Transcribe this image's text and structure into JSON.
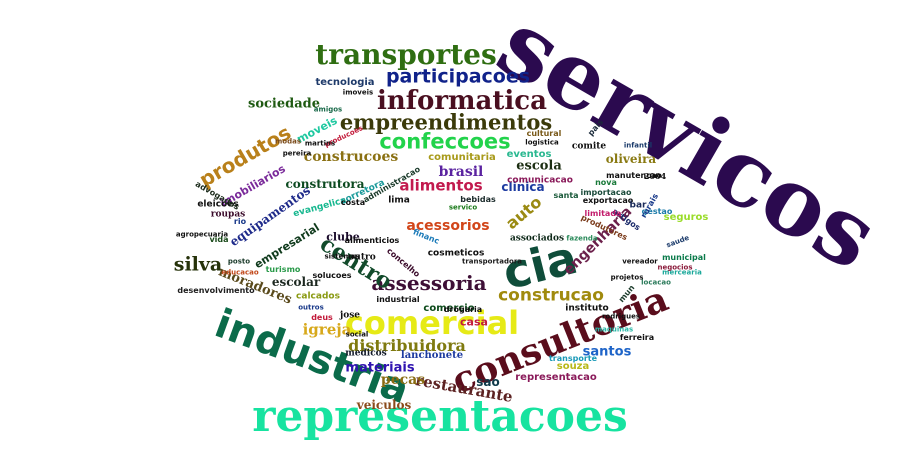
{
  "words": [
    {
      "text": "servicos",
      "color": "#2b0a4f",
      "font": "serif",
      "rot": 30
    },
    {
      "text": "representacoes",
      "color": "#17e3a0",
      "font": "serif"
    },
    {
      "text": "comercial",
      "color": "#e6ea16",
      "font": "sans"
    },
    {
      "text": "consultoria",
      "color": "#5a0d1c",
      "font": "serif",
      "rot": -22
    },
    {
      "text": "industria",
      "color": "#0b6b4a",
      "font": "sans",
      "rot": 20
    },
    {
      "text": "cia",
      "color": "#0f4d3a",
      "font": "sans",
      "rot": -14
    },
    {
      "text": "transportes",
      "color": "#2f6e12",
      "font": "serif"
    },
    {
      "text": "informatica",
      "color": "#4a0f20",
      "font": "serif"
    },
    {
      "text": "empreendimentos",
      "color": "#3b3a0a",
      "font": "serif"
    },
    {
      "text": "participacoes",
      "color": "#10228a",
      "font": "sans"
    },
    {
      "text": "confeccoes",
      "color": "#22d34b",
      "font": "sans"
    },
    {
      "text": "assessoria",
      "color": "#3e0f36",
      "font": "serif"
    },
    {
      "text": "produtos",
      "color": "#b9801a",
      "font": "sans",
      "rot": -30
    },
    {
      "text": "centro",
      "color": "#114a2a",
      "font": "serif",
      "rot": 32
    },
    {
      "text": "construcao",
      "color": "#a08a0d",
      "font": "sans"
    },
    {
      "text": "distribuidora",
      "color": "#7f7a0f",
      "font": "serif"
    },
    {
      "text": "alimentos",
      "color": "#c21a4e",
      "font": "sans"
    },
    {
      "text": "construcoes",
      "color": "#8a7012",
      "font": "serif"
    },
    {
      "text": "restaurante",
      "color": "#5c2222",
      "font": "serif",
      "rot": 10
    },
    {
      "text": "engenharia",
      "color": "#6b1f4a",
      "font": "sans",
      "rot": -45
    },
    {
      "text": "silva",
      "color": "#26320a",
      "font": "serif"
    },
    {
      "text": "auto",
      "color": "#9a8a12",
      "font": "sans",
      "rot": -40
    },
    {
      "text": "materiais",
      "color": "#2f13b0",
      "font": "sans"
    },
    {
      "text": "igreja",
      "color": "#d7a81a",
      "font": "serif"
    },
    {
      "text": "brasil",
      "color": "#5a22a0",
      "font": "serif"
    },
    {
      "text": "escola",
      "color": "#1c2e12",
      "font": "serif"
    },
    {
      "text": "santos",
      "color": "#1e64c8",
      "font": "sans"
    },
    {
      "text": "acessorios",
      "color": "#d2461a",
      "font": "sans"
    },
    {
      "text": "pecas",
      "color": "#8a6c12",
      "font": "serif"
    },
    {
      "text": "sociedade",
      "color": "#1f5a12",
      "font": "serif"
    },
    {
      "text": "moradores",
      "color": "#5a4a1c",
      "font": "serif",
      "rot": 22
    },
    {
      "text": "construtora",
      "color": "#0c4a20",
      "font": "serif"
    },
    {
      "text": "oliveira",
      "color": "#8a7a12",
      "font": "serif"
    },
    {
      "text": "clinica",
      "color": "#1c3aa0",
      "font": "sans"
    },
    {
      "text": "tecnologia",
      "color": "#1e3a6a",
      "font": "sans"
    },
    {
      "text": "equipamentos",
      "color": "#1e2a8a",
      "font": "serif",
      "rot": -35
    },
    {
      "text": "escolar",
      "color": "#1c2820",
      "font": "serif"
    },
    {
      "text": "imobiliarios",
      "color": "#7a2a9a",
      "font": "sans",
      "rot": -30
    },
    {
      "text": "moveis",
      "color": "#1ec8a0",
      "font": "sans",
      "rot": -28
    },
    {
      "text": "empresarial",
      "color": "#0f3a1c",
      "font": "sans",
      "rot": -32
    },
    {
      "text": "clube",
      "color": "#1a0a2a",
      "font": "serif"
    },
    {
      "text": "sao",
      "color": "#0f3a4a",
      "font": "sans"
    },
    {
      "text": "veiculos",
      "color": "#8a4a1a",
      "font": "serif"
    },
    {
      "text": "comunitaria",
      "color": "#a89a1a",
      "font": "sans"
    },
    {
      "text": "eventos",
      "color": "#2ab890",
      "font": "sans"
    },
    {
      "text": "lanchonete",
      "color": "#1c3aa0",
      "font": "serif"
    },
    {
      "text": "representacao",
      "color": "#8a1a5a",
      "font": "sans"
    },
    {
      "text": "casa",
      "color": "#c21a3a",
      "font": "sans"
    },
    {
      "text": "seguros",
      "color": "#9adc2a",
      "font": "sans"
    },
    {
      "text": "souza",
      "color": "#b8b818",
      "font": "sans"
    },
    {
      "text": "instituto",
      "color": "#101010",
      "font": "sans"
    },
    {
      "text": "associados",
      "color": "#0f2a1a",
      "font": "serif"
    },
    {
      "text": "comercio",
      "color": "#0c4a1a",
      "font": "sans"
    },
    {
      "text": "medicos",
      "color": "#101828",
      "font": "serif"
    },
    {
      "text": "calcados",
      "color": "#8a9a12",
      "font": "sans"
    },
    {
      "text": "desenvolvimento",
      "color": "#1e1e1e",
      "font": "sans"
    },
    {
      "text": "turismo",
      "color": "#2a9a4a",
      "font": "sans"
    },
    {
      "text": "evangelica",
      "color": "#18b890",
      "font": "sans",
      "rot": -15
    },
    {
      "text": "corretora",
      "color": "#1a9a9a",
      "font": "sans",
      "rot": -25
    },
    {
      "text": "comite",
      "color": "#101010",
      "font": "serif"
    },
    {
      "text": "manutencao",
      "color": "#101010",
      "font": "sans"
    },
    {
      "text": "nova",
      "color": "#1a7a3a",
      "font": "sans"
    },
    {
      "text": "importacao",
      "color": "#1a4a3a",
      "font": "sans"
    },
    {
      "text": "exportacao",
      "color": "#101010",
      "font": "sans"
    },
    {
      "text": "lima",
      "color": "#101010",
      "font": "sans"
    },
    {
      "text": "comunicacao",
      "color": "#8a1a5a",
      "font": "sans"
    },
    {
      "text": "eleicoes",
      "color": "#101010",
      "font": "sans"
    },
    {
      "text": "roupas",
      "color": "#3a0a2a",
      "font": "serif"
    },
    {
      "text": "rio",
      "color": "#1a3a8a",
      "font": "sans"
    },
    {
      "text": "outro",
      "color": "#101010",
      "font": "serif"
    },
    {
      "text": "bar",
      "color": "#1a2a5a",
      "font": "sans"
    },
    {
      "text": "mun",
      "color": "#1a3a2a",
      "font": "sans",
      "rot": -50
    },
    {
      "text": "municipal",
      "color": "#0a7a4a",
      "font": "sans"
    },
    {
      "text": "solucoes",
      "color": "#101010",
      "font": "sans"
    },
    {
      "text": "deus",
      "color": "#c21a3a",
      "font": "sans"
    },
    {
      "text": "jose",
      "color": "#101010",
      "font": "serif"
    },
    {
      "text": "financ",
      "color": "#1a7ab8",
      "font": "sans",
      "rot": 22
    },
    {
      "text": "2004",
      "color": "#101010",
      "font": "serif"
    },
    {
      "text": "santa",
      "color": "#1a5a3a",
      "font": "sans"
    },
    {
      "text": "concelho",
      "color": "#3a0a2a",
      "font": "sans",
      "rot": 40
    },
    {
      "text": "artigos",
      "color": "#1a2a6a",
      "font": "sans",
      "rot": 35
    },
    {
      "text": "limitada",
      "color": "#c21a6a",
      "font": "sans"
    },
    {
      "text": "gestao",
      "color": "#1a7aa8",
      "font": "sans"
    },
    {
      "text": "rurais",
      "color": "#1a3a8a",
      "font": "sans",
      "rot": -60
    },
    {
      "text": "pais",
      "color": "#1a2a3a",
      "font": "sans",
      "rot": -50
    },
    {
      "text": "produtores",
      "color": "#7a3a1a",
      "font": "sans",
      "rot": 25
    },
    {
      "text": "ferreira",
      "color": "#101010",
      "font": "sans"
    },
    {
      "text": "transporte",
      "color": "#1a9ab8",
      "font": "sans"
    },
    {
      "text": "rodrigues",
      "color": "#101010",
      "font": "sans"
    },
    {
      "text": "maquinas",
      "color": "#2ab8a8",
      "font": "sans"
    },
    {
      "text": "locacao",
      "color": "#2a7a5a",
      "font": "sans"
    },
    {
      "text": "projetos",
      "color": "#101010",
      "font": "sans"
    },
    {
      "text": "mercearia",
      "color": "#1aa89a",
      "font": "sans"
    },
    {
      "text": "vereador",
      "color": "#101010",
      "font": "sans"
    },
    {
      "text": "negocios",
      "color": "#8a1a3a",
      "font": "sans"
    },
    {
      "text": "fazenda",
      "color": "#2a8a5a",
      "font": "sans"
    },
    {
      "text": "drogaria",
      "color": "#101010",
      "font": "sans"
    },
    {
      "text": "cosmeticos",
      "color": "#101010",
      "font": "sans"
    },
    {
      "text": "administracao",
      "color": "#1a3a2a",
      "font": "sans",
      "rot": -30
    },
    {
      "text": "bebidas",
      "color": "#1a2a2a",
      "font": "sans"
    },
    {
      "text": "alimenticios",
      "color": "#101010",
      "font": "sans"
    },
    {
      "text": "advogados",
      "color": "#1a2a1a",
      "font": "sans",
      "rot": 30
    },
    {
      "text": "vida",
      "color": "#1a4a1a",
      "font": "sans"
    },
    {
      "text": "saude",
      "color": "#1a3a6a",
      "font": "sans",
      "rot": -20
    },
    {
      "text": "outros",
      "color": "#1a3a8a",
      "font": "sans"
    },
    {
      "text": "industrial",
      "color": "#101010",
      "font": "sans"
    },
    {
      "text": "costa",
      "color": "#101010",
      "font": "sans"
    },
    {
      "text": "cultural",
      "color": "#7a5a1a",
      "font": "sans"
    },
    {
      "text": "logistica",
      "color": "#101010",
      "font": "sans"
    },
    {
      "text": "imoveis",
      "color": "#101010",
      "font": "sans"
    },
    {
      "text": "sistemas",
      "color": "#101010",
      "font": "sans"
    },
    {
      "text": "educacao",
      "color": "#c2481a",
      "font": "sans"
    },
    {
      "text": "posto",
      "color": "#1a3a2a",
      "font": "sans"
    },
    {
      "text": "pereira",
      "color": "#101010",
      "font": "sans"
    },
    {
      "text": "modas",
      "color": "#7a4a1a",
      "font": "sans"
    },
    {
      "text": "servico",
      "color": "#1a7a1a",
      "font": "sans"
    },
    {
      "text": "agropecuaria",
      "color": "#101010",
      "font": "sans"
    },
    {
      "text": "transportadora",
      "color": "#1a1a1a",
      "font": "sans"
    },
    {
      "text": "amigos",
      "color": "#1a6a4a",
      "font": "sans"
    },
    {
      "text": "producoes",
      "color": "#c21a3a",
      "font": "sans",
      "rot": -25
    },
    {
      "text": "martins",
      "color": "#101010",
      "font": "sans"
    },
    {
      "text": "infantil",
      "color": "#1a3a6a",
      "font": "sans"
    },
    {
      "text": "social",
      "color": "#101010",
      "font": "sans"
    },
    {
      "text": "marketing",
      "color": "#8a3a1a",
      "font": "sans",
      "rot": 25
    }
  ]
}
